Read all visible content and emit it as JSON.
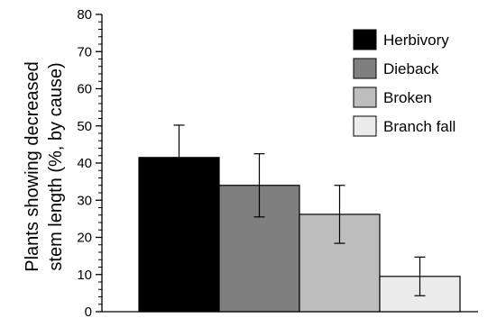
{
  "chart_data": {
    "type": "bar",
    "title": "",
    "xlabel": "",
    "ylabel": [
      "Plants showing decreased",
      "stem length (%, by cause)"
    ],
    "ylim": [
      0,
      80
    ],
    "yticks": [
      "0",
      "10",
      "20",
      "30",
      "40",
      "50",
      "60",
      "70",
      "80"
    ],
    "categories": [
      "Herbivory",
      "Dieback",
      "Broken",
      "Branch fall"
    ],
    "values": [
      41.5,
      34,
      26.2,
      9.5
    ],
    "errors": [
      8.7,
      8.5,
      7.8,
      5.2
    ],
    "colors": [
      "#000000",
      "#7f7f7f",
      "#bdbdbd",
      "#ebebeb"
    ],
    "grid": false,
    "legend": {
      "position": "top-right",
      "entries": [
        "Herbivory",
        "Dieback",
        "Broken",
        "Branch fall"
      ]
    }
  }
}
